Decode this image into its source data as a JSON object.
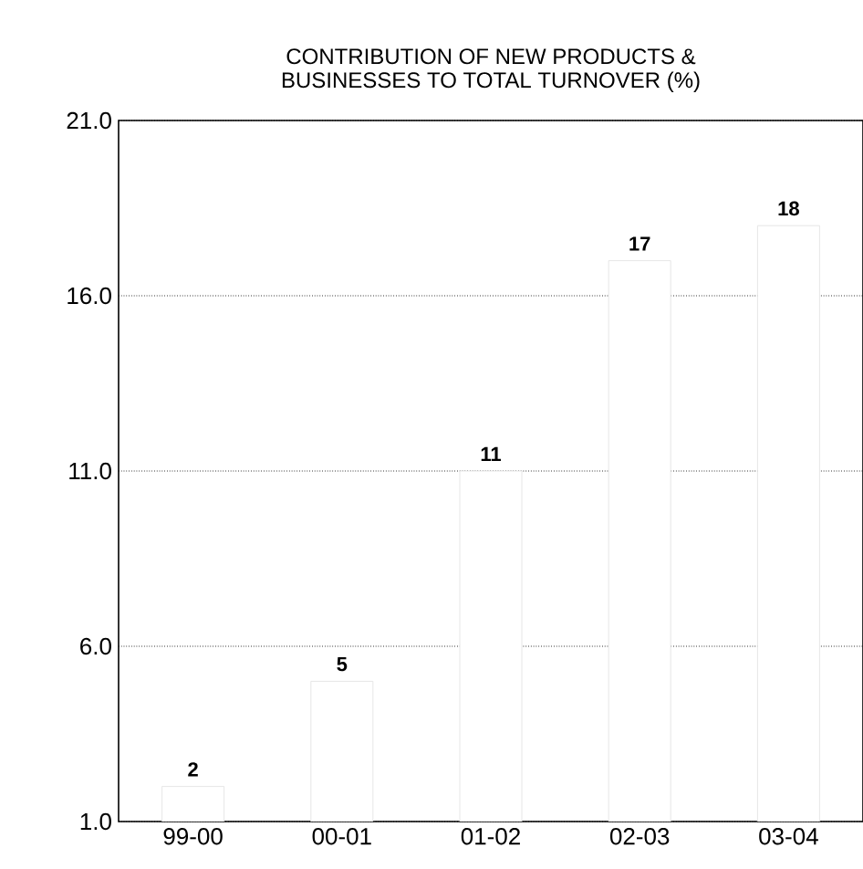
{
  "chart_data": {
    "type": "bar",
    "title": "CONTRIBUTION OF NEW PRODUCTS &\nBUSINESSES TO TOTAL TURNOVER (%)",
    "categories": [
      "99-00",
      "00-01",
      "01-02",
      "02-03",
      "03-04"
    ],
    "values": [
      2,
      5,
      11,
      17,
      18
    ],
    "color": "#ffffff",
    "data_labels": true,
    "ylim": [
      1,
      21
    ],
    "yticks": [
      {
        "value": 1,
        "label": "1.0"
      },
      {
        "value": 6,
        "label": "6.0"
      },
      {
        "value": 11,
        "label": "11.0"
      },
      {
        "value": 16,
        "label": "16.0"
      },
      {
        "value": 21,
        "label": "21.0"
      }
    ],
    "grid": "y"
  }
}
